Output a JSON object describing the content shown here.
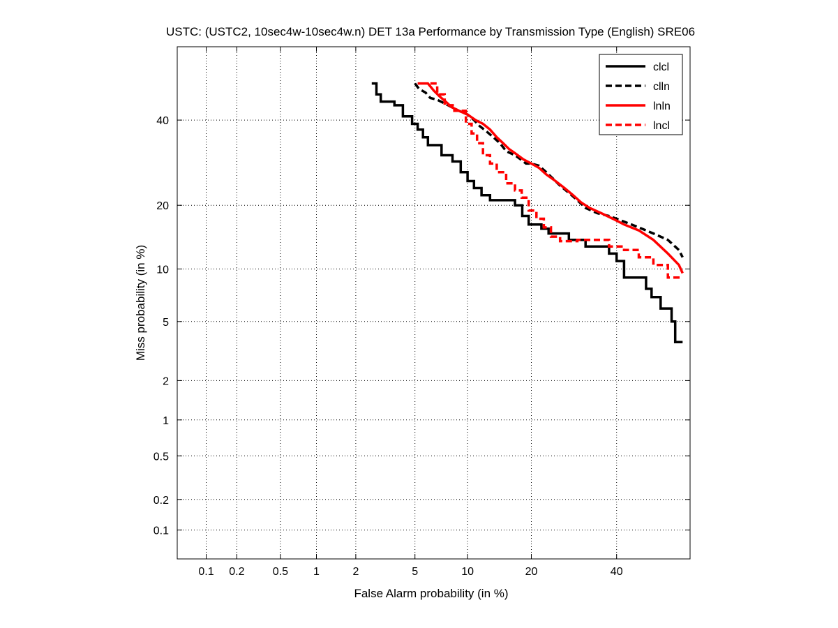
{
  "chart_data": {
    "type": "line",
    "title": "USTC: (USTC2, 10sec4w-10sec4w.n) DET 13a Performance by Transmission Type (English) SRE06",
    "xlabel": "False Alarm probability (in %)",
    "ylabel": "Miss probability (in %)",
    "xscale": "probit",
    "yscale": "probit",
    "xlim": [
      0.05,
      60
    ],
    "ylim": [
      0.05,
      60
    ],
    "xticks": [
      0.1,
      0.2,
      0.5,
      1,
      2,
      5,
      10,
      20,
      40
    ],
    "yticks": [
      0.1,
      0.2,
      0.5,
      1,
      2,
      5,
      10,
      20,
      40
    ],
    "xtick_labels": [
      "0.1",
      "0.2",
      "0.5",
      "1",
      "2",
      "5",
      "10",
      "20",
      "40"
    ],
    "ytick_labels": [
      "0.1",
      "0.2",
      "0.5",
      "1",
      "2",
      "5",
      "10",
      "20",
      "40"
    ],
    "grid": true,
    "legend_position": "top-right",
    "series": [
      {
        "name": "clcl",
        "color": "#000000",
        "dash": "solid",
        "x": [
          2.6,
          2.8,
          2.8,
          3.0,
          3.0,
          3.7,
          3.7,
          4.2,
          4.2,
          4.8,
          4.8,
          5.2,
          5.2,
          5.6,
          5.6,
          6.0,
          6.0,
          7.2,
          7.2,
          8.3,
          8.3,
          9.2,
          9.2,
          10.0,
          10.0,
          10.8,
          10.8,
          11.8,
          11.8,
          13.0,
          13.0,
          17.0,
          17.0,
          18.3,
          18.3,
          19.5,
          19.5,
          22.0,
          22.0,
          23.5,
          23.5,
          28.0,
          28.0,
          32.0,
          32.0,
          38.0,
          38.0,
          40.0,
          40.0,
          42.0,
          42.0,
          48.0,
          48.0,
          49.5,
          49.5,
          52.0,
          52.0,
          55.0,
          55.0,
          56.0,
          56.0,
          58.0
        ],
        "y": [
          50.0,
          50.0,
          47.0,
          47.0,
          45.0,
          45.0,
          44.0,
          44.0,
          41.0,
          41.0,
          39.0,
          39.0,
          37.5,
          37.5,
          35.5,
          35.5,
          33.5,
          33.5,
          31.0,
          31.0,
          29.5,
          29.5,
          27.0,
          27.0,
          25.0,
          25.0,
          23.5,
          23.5,
          22.0,
          22.0,
          21.0,
          21.0,
          20.0,
          20.0,
          18.0,
          18.0,
          16.5,
          16.5,
          15.8,
          15.8,
          15.0,
          15.0,
          14.0,
          14.0,
          13.0,
          13.0,
          12.0,
          12.0,
          11.0,
          11.0,
          9.0,
          9.0,
          7.8,
          7.8,
          7.0,
          7.0,
          6.0,
          6.0,
          5.0,
          5.0,
          3.7,
          3.7
        ]
      },
      {
        "name": "clln",
        "color": "#000000",
        "dash": "dashed",
        "x": [
          5.0,
          5.3,
          5.8,
          6.2,
          6.8,
          7.5,
          8.2,
          9.0,
          10.0,
          10.8,
          11.5,
          12.5,
          13.5,
          14.5,
          15.5,
          17.0,
          18.0,
          19.0,
          20.0,
          21.5,
          23.0,
          24.5,
          26.0,
          28.0,
          30.0,
          32.0,
          35.0,
          38.0,
          42.0,
          46.0,
          50.0,
          54.0,
          57.0,
          58.0
        ],
        "y": [
          50.0,
          48.5,
          47.5,
          46.0,
          45.5,
          44.5,
          43.5,
          42.5,
          41.5,
          40.0,
          38.5,
          37.0,
          35.5,
          34.0,
          32.0,
          31.0,
          30.0,
          29.0,
          29.0,
          28.5,
          27.0,
          25.5,
          24.0,
          22.5,
          21.0,
          19.5,
          18.5,
          18.0,
          17.0,
          16.0,
          15.0,
          14.0,
          12.5,
          11.5
        ]
      },
      {
        "name": "lnln",
        "color": "#ff0000",
        "dash": "solid",
        "x": [
          5.2,
          6.0,
          6.5,
          7.0,
          7.6,
          8.2,
          9.0,
          10.0,
          11.0,
          12.0,
          13.0,
          14.0,
          15.0,
          16.0,
          17.0,
          18.5,
          20.0,
          21.5,
          23.0,
          25.0,
          27.0,
          29.0,
          31.0,
          33.0,
          36.0,
          39.0,
          42.0,
          46.0,
          50.0,
          54.0,
          57.0,
          58.0
        ],
        "y": [
          50.0,
          50.0,
          48.0,
          46.5,
          45.0,
          43.5,
          42.5,
          41.5,
          40.0,
          39.0,
          37.5,
          35.5,
          34.0,
          32.5,
          31.5,
          30.0,
          29.0,
          28.0,
          26.5,
          25.0,
          23.5,
          22.0,
          20.5,
          19.5,
          18.5,
          17.5,
          16.5,
          15.5,
          14.0,
          12.0,
          10.5,
          9.5
        ]
      },
      {
        "name": "lncl",
        "color": "#ff0000",
        "dash": "dashed",
        "x": [
          6.2,
          6.8,
          6.8,
          7.5,
          7.5,
          8.5,
          8.5,
          9.8,
          9.8,
          10.5,
          10.5,
          11.2,
          11.2,
          12.0,
          12.0,
          13.0,
          13.0,
          14.0,
          14.0,
          15.5,
          15.5,
          17.0,
          17.0,
          18.2,
          18.2,
          19.5,
          19.5,
          21.0,
          21.0,
          22.5,
          22.5,
          24.0,
          24.0,
          26.0,
          26.0,
          30.0,
          30.0,
          38.0,
          38.0,
          42.0,
          42.0,
          46.0,
          46.0,
          50.0,
          50.0,
          54.0,
          54.0,
          58.0
        ],
        "y": [
          50.0,
          50.0,
          47.0,
          47.0,
          44.0,
          44.0,
          42.5,
          42.5,
          39.0,
          39.0,
          36.5,
          36.5,
          34.0,
          34.0,
          31.0,
          31.0,
          29.0,
          29.0,
          27.0,
          27.0,
          24.5,
          24.5,
          23.0,
          23.0,
          21.5,
          21.5,
          19.0,
          19.0,
          17.5,
          17.5,
          16.0,
          16.0,
          14.5,
          14.5,
          13.8,
          13.8,
          14.0,
          14.0,
          13.0,
          13.0,
          12.5,
          12.5,
          11.5,
          11.5,
          10.5,
          10.5,
          9.0,
          9.0
        ]
      }
    ]
  }
}
